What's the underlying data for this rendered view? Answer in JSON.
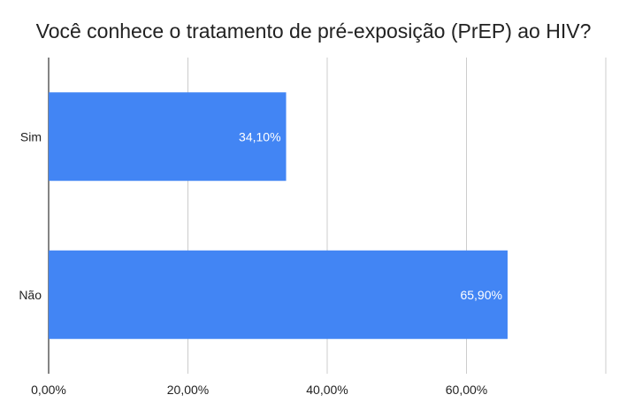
{
  "chart_data": {
    "type": "bar",
    "orientation": "horizontal",
    "title": "Você conhece o tratamento de pré-exposição (PrEP) ao HIV?",
    "categories": [
      "Sim",
      "Não"
    ],
    "values": [
      34.1,
      65.9
    ],
    "data_labels": [
      "34,10%",
      "65,90%"
    ],
    "xlim": [
      0,
      80
    ],
    "x_ticks": [
      0,
      20,
      40,
      60,
      80
    ],
    "x_tick_labels": [
      "0,00%",
      "20,00%",
      "40,00%",
      "60,00%",
      ""
    ],
    "xlabel": "",
    "ylabel": "",
    "grid": "vertical",
    "legend": "none",
    "bar_color": "#4285F4"
  }
}
